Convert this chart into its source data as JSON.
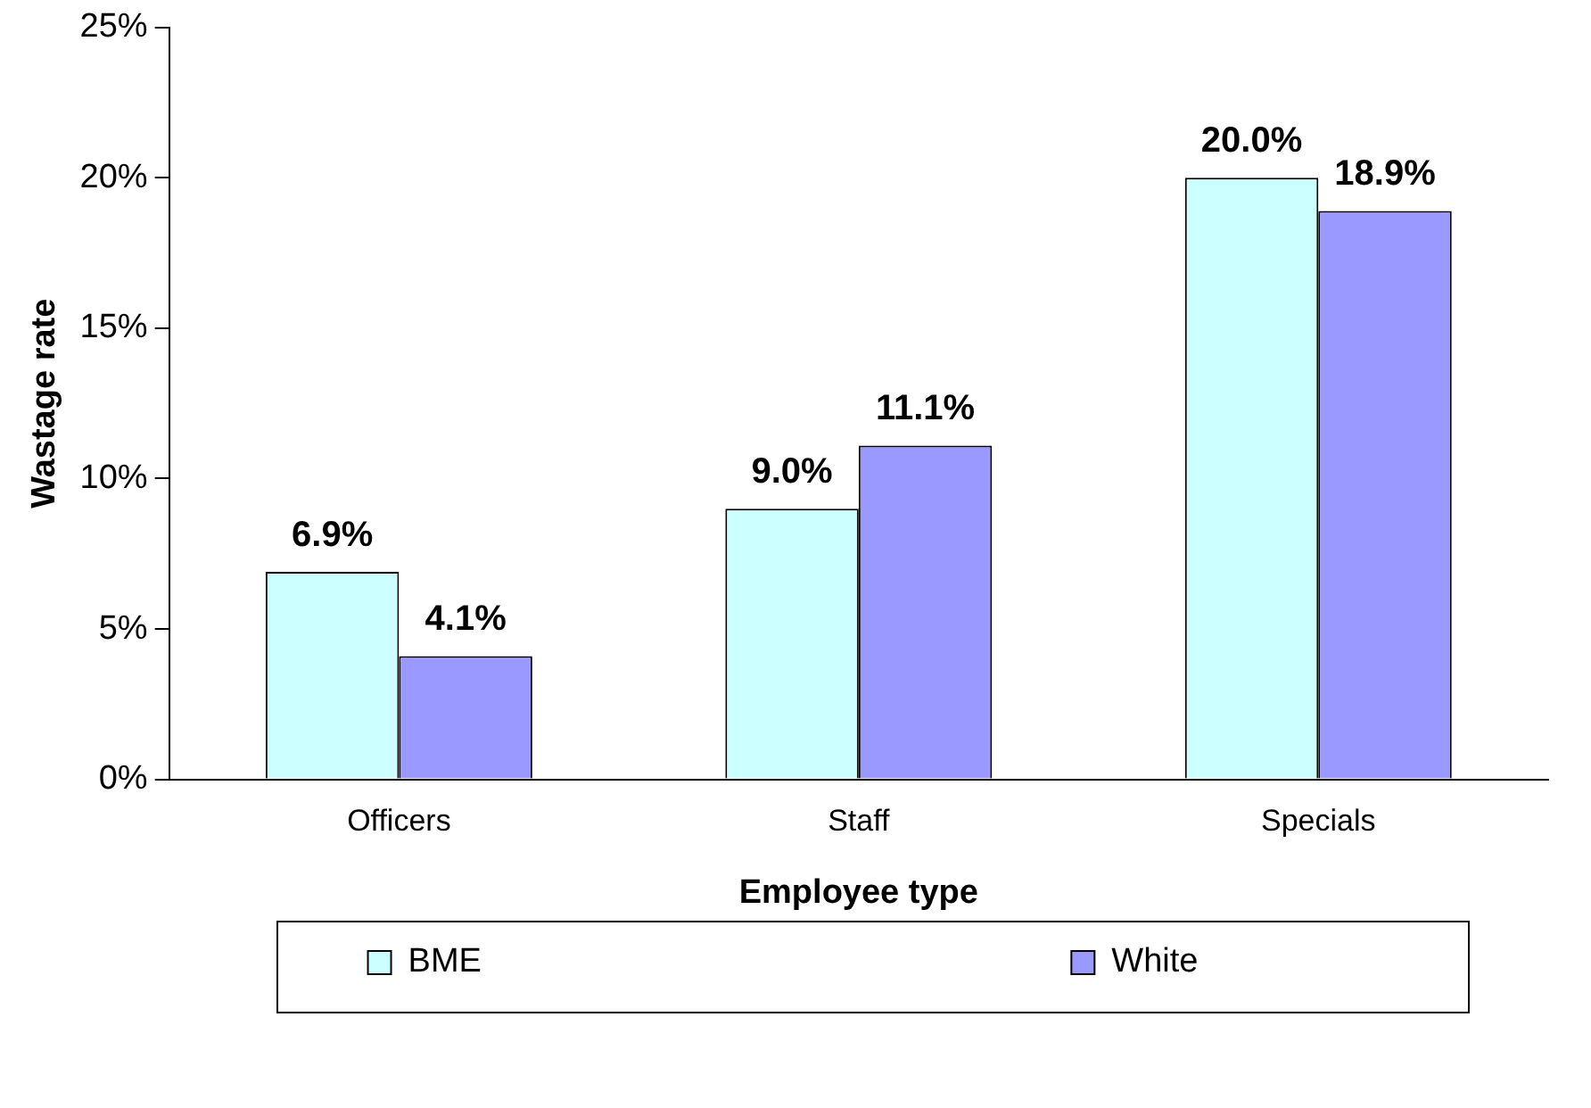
{
  "chart_data": {
    "type": "bar",
    "xlabel": "Employee type",
    "ylabel": "Wastage rate",
    "categories": [
      "Officers",
      "Staff",
      "Specials"
    ],
    "series": [
      {
        "name": "BME",
        "color": "#ccffff",
        "values": [
          6.9,
          9.0,
          20.0
        ],
        "value_labels": [
          "6.9%",
          "9.0%",
          "20.0%"
        ]
      },
      {
        "name": "White",
        "color": "#9999ff",
        "values": [
          4.1,
          11.1,
          18.9
        ],
        "value_labels": [
          "4.1%",
          "11.1%",
          "18.9%"
        ]
      }
    ],
    "ylim": [
      0,
      25
    ],
    "yticks": [
      {
        "value": 0,
        "label": "0%"
      },
      {
        "value": 5,
        "label": "5%"
      },
      {
        "value": 10,
        "label": "10%"
      },
      {
        "value": 15,
        "label": "15%"
      },
      {
        "value": 20,
        "label": "20%"
      },
      {
        "value": 25,
        "label": "25%"
      }
    ],
    "grid": false,
    "legend": "bottom"
  }
}
